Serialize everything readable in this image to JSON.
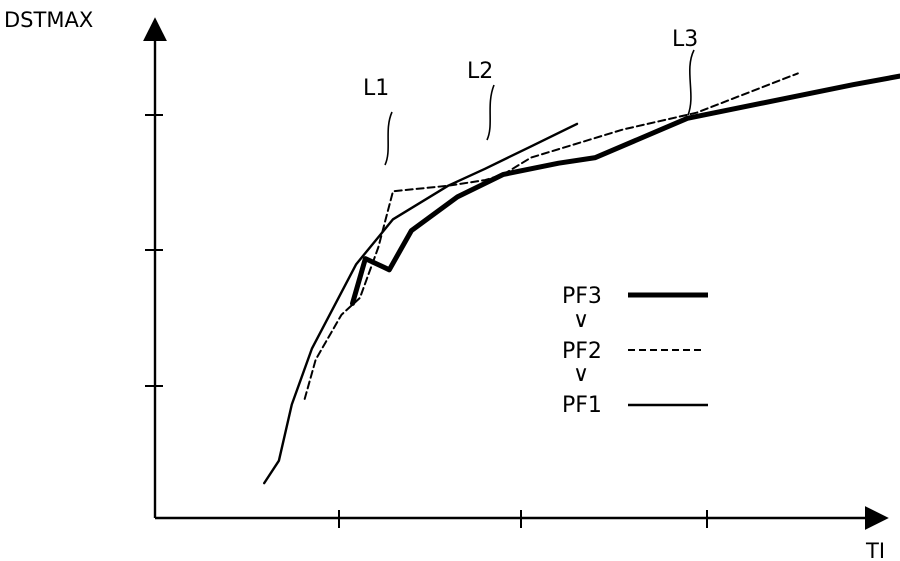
{
  "chart_data": {
    "type": "line",
    "xlabel": "TI",
    "ylabel": "DSTMAX",
    "grid": false,
    "legend_placement": "right",
    "series": [
      {
        "name": "PF1",
        "style": "thin-solid",
        "tag": "L1",
        "points": [
          [
            0.3,
            0.08
          ],
          [
            0.38,
            0.12
          ],
          [
            0.45,
            0.22
          ],
          [
            0.56,
            0.32
          ],
          [
            0.8,
            0.47
          ],
          [
            1.0,
            0.55
          ],
          [
            1.3,
            0.61
          ],
          [
            1.5,
            0.64
          ],
          [
            1.75,
            0.68
          ],
          [
            2.0,
            0.72
          ]
        ]
      },
      {
        "name": "PF2",
        "style": "dashed",
        "tag": "L2",
        "points": [
          [
            0.52,
            0.23
          ],
          [
            0.58,
            0.3
          ],
          [
            0.72,
            0.38
          ],
          [
            0.82,
            0.41
          ],
          [
            0.92,
            0.5
          ],
          [
            1.0,
            0.6
          ],
          [
            1.3,
            0.61
          ],
          [
            1.5,
            0.62
          ],
          [
            1.6,
            0.63
          ],
          [
            1.75,
            0.66
          ],
          [
            2.25,
            0.71
          ],
          [
            2.65,
            0.74
          ],
          [
            3.2,
            0.81
          ]
        ]
      },
      {
        "name": "PF3",
        "style": "thick-solid",
        "tag": "L3",
        "points": [
          [
            0.78,
            0.4
          ],
          [
            0.85,
            0.48
          ],
          [
            0.98,
            0.46
          ],
          [
            1.1,
            0.53
          ],
          [
            1.35,
            0.59
          ],
          [
            1.6,
            0.63
          ],
          [
            1.9,
            0.65
          ],
          [
            2.1,
            0.66
          ],
          [
            2.6,
            0.73
          ],
          [
            3.5,
            0.79
          ],
          [
            4.0,
            0.82
          ],
          [
            4.25,
            0.84
          ]
        ]
      }
    ],
    "legend": {
      "entries": [
        "PF3",
        "PF2",
        "PF1"
      ],
      "separator": "∨"
    },
    "ylim": [
      0,
      1.0
    ],
    "xlim": [
      -0.1,
      4.0
    ]
  }
}
